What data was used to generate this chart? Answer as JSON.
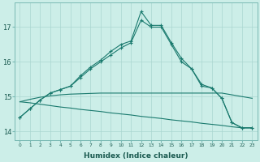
{
  "xlabel": "Humidex (Indice chaleur)",
  "background_color": "#cceee8",
  "grid_color": "#aad6d0",
  "line_color": "#1a7a6e",
  "x_ticks": [
    0,
    1,
    2,
    3,
    4,
    5,
    6,
    7,
    8,
    9,
    10,
    11,
    12,
    13,
    14,
    15,
    16,
    17,
    18,
    19,
    20,
    21,
    22,
    23
  ],
  "ylim": [
    13.75,
    17.7
  ],
  "yticks": [
    14,
    15,
    16,
    17
  ],
  "line_flat1": {
    "x": [
      0,
      1,
      2,
      3,
      4,
      5,
      6,
      7,
      8,
      9,
      10,
      11,
      12,
      13,
      14,
      15,
      16,
      17,
      18,
      19,
      20,
      21,
      22,
      23
    ],
    "y": [
      14.85,
      14.92,
      14.98,
      15.02,
      15.05,
      15.07,
      15.08,
      15.09,
      15.1,
      15.1,
      15.1,
      15.1,
      15.1,
      15.1,
      15.1,
      15.1,
      15.1,
      15.1,
      15.1,
      15.1,
      15.1,
      15.05,
      15.0,
      14.95
    ]
  },
  "line_flat2": {
    "x": [
      0,
      1,
      2,
      3,
      4,
      5,
      6,
      7,
      8,
      9,
      10,
      11,
      12,
      13,
      14,
      15,
      16,
      17,
      18,
      19,
      20,
      21,
      22,
      23
    ],
    "y": [
      14.85,
      14.82,
      14.78,
      14.74,
      14.7,
      14.67,
      14.63,
      14.6,
      14.57,
      14.53,
      14.5,
      14.47,
      14.43,
      14.4,
      14.37,
      14.33,
      14.3,
      14.27,
      14.23,
      14.2,
      14.17,
      14.13,
      14.1,
      14.1
    ]
  },
  "line_peak1": {
    "x": [
      0,
      1,
      2,
      3,
      4,
      5,
      6,
      7,
      8,
      9,
      10,
      11,
      12,
      13,
      14,
      15,
      16,
      17,
      18,
      19,
      20,
      21,
      22,
      23
    ],
    "y": [
      14.4,
      14.65,
      14.9,
      15.1,
      15.2,
      15.3,
      15.6,
      15.85,
      16.05,
      16.3,
      16.5,
      16.6,
      17.45,
      17.05,
      17.05,
      16.55,
      16.1,
      15.8,
      15.35,
      15.25,
      14.95,
      14.25,
      14.1,
      14.1
    ]
  },
  "line_peak2": {
    "x": [
      0,
      1,
      2,
      3,
      4,
      5,
      6,
      7,
      8,
      9,
      10,
      11,
      12,
      13,
      14,
      15,
      16,
      17,
      18,
      19,
      20,
      21,
      22,
      23
    ],
    "y": [
      14.4,
      14.65,
      14.9,
      15.1,
      15.2,
      15.3,
      15.55,
      15.8,
      16.0,
      16.2,
      16.4,
      16.55,
      17.2,
      17.0,
      17.0,
      16.5,
      16.0,
      15.8,
      15.3,
      15.25,
      14.95,
      14.25,
      14.1,
      14.1
    ]
  }
}
